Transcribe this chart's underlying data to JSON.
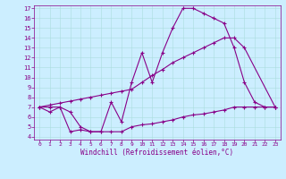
{
  "xlabel": "Windchill (Refroidissement éolien,°C)",
  "bg_color": "#cceeff",
  "line_color": "#880088",
  "xlim": [
    -0.5,
    23.5
  ],
  "ylim": [
    3.7,
    17.3
  ],
  "xticks": [
    0,
    1,
    2,
    3,
    4,
    5,
    6,
    7,
    8,
    9,
    10,
    11,
    12,
    13,
    14,
    15,
    16,
    17,
    18,
    19,
    20,
    21,
    22,
    23
  ],
  "yticks": [
    4,
    5,
    6,
    7,
    8,
    9,
    10,
    11,
    12,
    13,
    14,
    15,
    16,
    17
  ],
  "series1_x": [
    0,
    1,
    2,
    3,
    4,
    5,
    6,
    7,
    8,
    9,
    10,
    11,
    12,
    13,
    14,
    15,
    16,
    17,
    18,
    19,
    20,
    21,
    22,
    23
  ],
  "series1_y": [
    7.0,
    6.5,
    7.0,
    6.5,
    5.0,
    4.5,
    4.5,
    7.5,
    5.5,
    9.5,
    12.5,
    9.5,
    12.5,
    15.0,
    17.0,
    17.0,
    16.5,
    16.0,
    15.5,
    13.0,
    9.5,
    7.5,
    7.0,
    7.0
  ],
  "series2_x": [
    0,
    1,
    2,
    3,
    4,
    5,
    6,
    7,
    8,
    9,
    10,
    11,
    12,
    13,
    14,
    15,
    16,
    17,
    18,
    19,
    20,
    21,
    22,
    23
  ],
  "series2_y": [
    7.0,
    7.2,
    7.4,
    7.6,
    7.8,
    8.0,
    8.2,
    8.4,
    8.6,
    8.8,
    9.5,
    10.2,
    10.8,
    11.5,
    12.0,
    12.5,
    13.0,
    13.5,
    14.0,
    14.0,
    13.0,
    null,
    null,
    7.0
  ],
  "series2_has_gap": true,
  "series3_x": [
    0,
    1,
    2,
    3,
    4,
    5,
    6,
    7,
    8,
    9,
    10,
    11,
    12,
    13,
    14,
    15,
    16,
    17,
    18,
    19,
    20,
    21,
    22,
    23
  ],
  "series3_y": [
    7.0,
    7.0,
    7.0,
    4.5,
    4.7,
    4.5,
    4.5,
    4.5,
    4.5,
    5.0,
    5.2,
    5.3,
    5.5,
    5.7,
    6.0,
    6.2,
    6.3,
    6.5,
    6.7,
    7.0,
    7.0,
    7.0,
    7.0,
    7.0
  ]
}
